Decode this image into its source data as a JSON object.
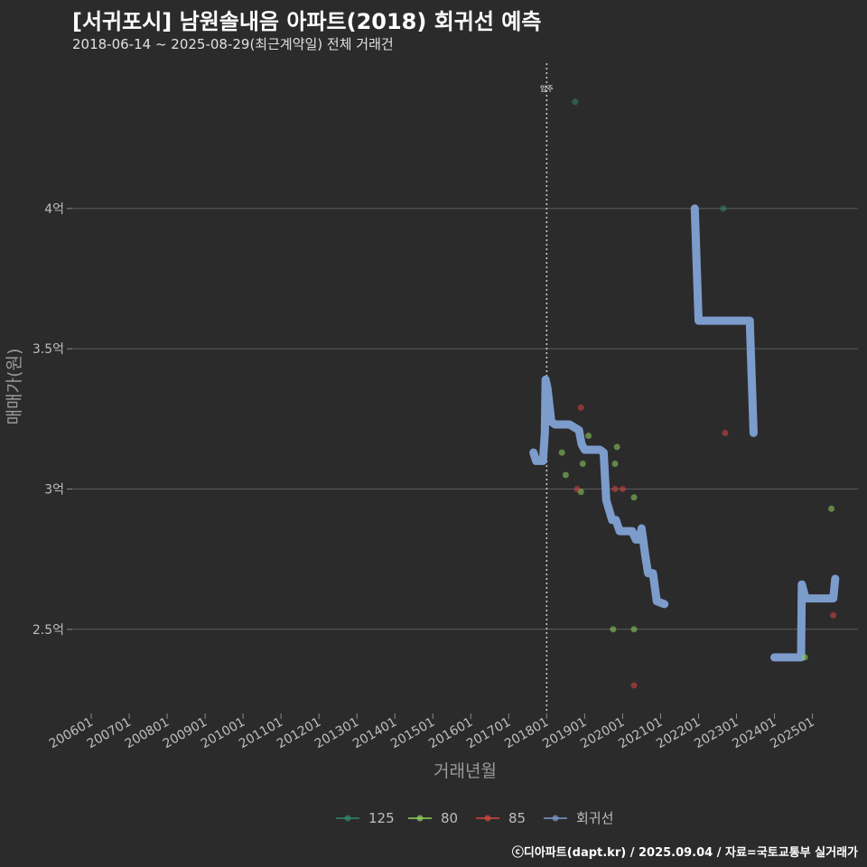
{
  "header": {
    "title": "[서귀포시] 남원솔내음 아파트(2018) 회귀선 예측",
    "subtitle": "2018-06-14 ~ 2025-08-29(최근계약일) 전체 거래건"
  },
  "footer": {
    "credit": "ⓒ디아파트(dapt.kr) / 2025.09.04 / 자료=국토교통부 실거래가"
  },
  "colors": {
    "background": "#2b2b2c",
    "grid": "#5c5c5c",
    "s125": "#2d8a6a",
    "s80": "#8fd35f",
    "s85": "#d9463e",
    "regression": "#7c9ccc"
  },
  "chart_data": {
    "type": "scatter",
    "title": "[서귀포시] 남원솔내음 아파트(2018) 회귀선 예측",
    "subtitle": "2018-06-14 ~ 2025-08-29(최근계약일) 전체 거래건",
    "xlabel": "거래년월",
    "ylabel": "매매가(원)",
    "x_unit": "year (decimal)",
    "xlim": [
      2005.5,
      2026.2
    ],
    "ylim": [
      2.2,
      4.55
    ],
    "x_ticks": [
      {
        "value": 2006,
        "label": "200601"
      },
      {
        "value": 2007,
        "label": "200701"
      },
      {
        "value": 2008,
        "label": "200801"
      },
      {
        "value": 2009,
        "label": "200901"
      },
      {
        "value": 2010,
        "label": "201001"
      },
      {
        "value": 2011,
        "label": "201101"
      },
      {
        "value": 2012,
        "label": "201201"
      },
      {
        "value": 2013,
        "label": "201301"
      },
      {
        "value": 2014,
        "label": "201401"
      },
      {
        "value": 2015,
        "label": "201501"
      },
      {
        "value": 2016,
        "label": "201601"
      },
      {
        "value": 2017,
        "label": "201701"
      },
      {
        "value": 2018,
        "label": "201801"
      },
      {
        "value": 2019,
        "label": "201901"
      },
      {
        "value": 2020,
        "label": "202001"
      },
      {
        "value": 2021,
        "label": "202101"
      },
      {
        "value": 2022,
        "label": "202201"
      },
      {
        "value": 2023,
        "label": "202301"
      },
      {
        "value": 2024,
        "label": "202401"
      },
      {
        "value": 2025,
        "label": "202501"
      }
    ],
    "y_ticks": [
      {
        "value": 2.5,
        "label": "2.5억"
      },
      {
        "value": 3.0,
        "label": "3억"
      },
      {
        "value": 3.5,
        "label": "3.5억"
      },
      {
        "value": 4.0,
        "label": "4억"
      }
    ],
    "vline": {
      "x": 2018.0,
      "label": "입주"
    },
    "series": [
      {
        "name": "125",
        "color": "#2d8a6a",
        "kind": "points",
        "points": [
          [
            2018.75,
            4.38
          ],
          [
            2022.65,
            4.0
          ]
        ]
      },
      {
        "name": "80",
        "color": "#8fd35f",
        "kind": "points",
        "points": [
          [
            2018.4,
            3.13
          ],
          [
            2018.5,
            3.05
          ],
          [
            2018.9,
            2.99
          ],
          [
            2018.95,
            3.09
          ],
          [
            2019.1,
            3.19
          ],
          [
            2019.75,
            2.5
          ],
          [
            2019.8,
            3.09
          ],
          [
            2019.85,
            3.15
          ],
          [
            2020.3,
            2.97
          ],
          [
            2020.3,
            2.5
          ],
          [
            2024.8,
            2.4
          ],
          [
            2025.5,
            2.93
          ]
        ]
      },
      {
        "name": "85",
        "color": "#d9463e",
        "kind": "points",
        "points": [
          [
            2018.8,
            3.0
          ],
          [
            2018.9,
            3.29
          ],
          [
            2019.8,
            3.0
          ],
          [
            2020.0,
            3.0
          ],
          [
            2020.3,
            2.3
          ],
          [
            2022.7,
            3.2
          ],
          [
            2025.55,
            2.55
          ]
        ]
      },
      {
        "name": "회귀선",
        "color": "#7c9ccc",
        "kind": "line",
        "segments": [
          [
            [
              2017.65,
              3.13
            ],
            [
              2017.72,
              3.1
            ],
            [
              2017.9,
              3.1
            ],
            [
              2017.95,
              3.2
            ],
            [
              2017.97,
              3.39
            ],
            [
              2018.02,
              3.36
            ],
            [
              2018.12,
              3.24
            ],
            [
              2018.22,
              3.23
            ],
            [
              2018.6,
              3.23
            ],
            [
              2018.85,
              3.21
            ],
            [
              2018.92,
              3.16
            ],
            [
              2019.0,
              3.14
            ],
            [
              2019.4,
              3.14
            ],
            [
              2019.5,
              3.13
            ],
            [
              2019.57,
              2.96
            ],
            [
              2019.72,
              2.89
            ],
            [
              2019.82,
              2.89
            ],
            [
              2019.92,
              2.85
            ],
            [
              2020.05,
              2.85
            ],
            [
              2020.25,
              2.85
            ],
            [
              2020.35,
              2.82
            ],
            [
              2020.45,
              2.82
            ],
            [
              2020.5,
              2.86
            ],
            [
              2020.6,
              2.76
            ],
            [
              2020.67,
              2.7
            ],
            [
              2020.8,
              2.7
            ],
            [
              2020.9,
              2.6
            ],
            [
              2021.1,
              2.59
            ]
          ],
          [
            [
              2021.9,
              4.0
            ],
            [
              2022.0,
              3.6
            ],
            [
              2022.3,
              3.6
            ],
            [
              2023.0,
              3.6
            ],
            [
              2023.35,
              3.6
            ],
            [
              2023.45,
              3.2
            ]
          ],
          [
            [
              2024.0,
              2.4
            ],
            [
              2024.5,
              2.4
            ],
            [
              2024.7,
              2.4
            ],
            [
              2024.72,
              2.66
            ],
            [
              2024.82,
              2.61
            ],
            [
              2025.1,
              2.61
            ],
            [
              2025.55,
              2.61
            ],
            [
              2025.6,
              2.68
            ]
          ]
        ]
      }
    ],
    "legend": {
      "position": "bottom",
      "entries": [
        "125",
        "80",
        "85",
        "회귀선"
      ]
    }
  }
}
